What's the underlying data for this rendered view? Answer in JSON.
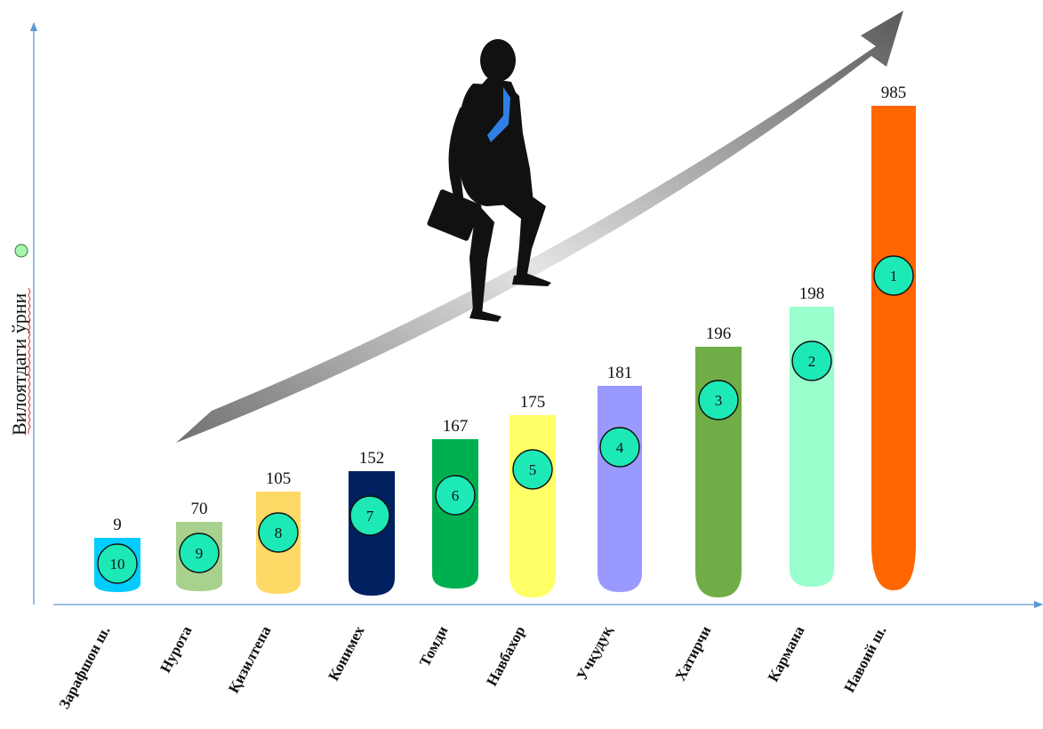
{
  "chart_data": {
    "type": "bar",
    "title": "",
    "xlabel": "",
    "ylabel": "Вилоятдаги ўрни",
    "categories": [
      "Зарафшон ш.",
      "Нурота",
      "Қизилтепа",
      "Конимех",
      "Томди",
      "Навбахор",
      "Учқудуқ",
      "Хатирчи",
      "Кармана",
      "Навоий ш."
    ],
    "values": [
      9,
      70,
      105,
      152,
      167,
      175,
      181,
      196,
      198,
      985
    ],
    "ranks": [
      "10",
      "9",
      "8",
      "7",
      "6",
      "5",
      "4",
      "3",
      "2",
      "1"
    ],
    "value_labels": [
      "9",
      "70",
      "105",
      "152",
      "167",
      "175",
      "181",
      "196",
      "198",
      "985"
    ],
    "colors": [
      "#00ccff",
      "#a9d18e",
      "#ffd966",
      "#002060",
      "#00b050",
      "#ffff66",
      "#9999ff",
      "#70ad47",
      "#99ffcc",
      "#ff6600"
    ],
    "rank_badge_color": "#1de9b6",
    "grid": false,
    "legend": "none"
  }
}
